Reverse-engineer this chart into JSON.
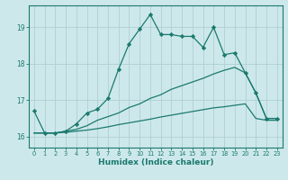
{
  "xlabel": "Humidex (Indice chaleur)",
  "xlim": [
    -0.5,
    23.5
  ],
  "ylim": [
    15.7,
    19.6
  ],
  "yticks": [
    16,
    17,
    18,
    19
  ],
  "xticks": [
    0,
    1,
    2,
    3,
    4,
    5,
    6,
    7,
    8,
    9,
    10,
    11,
    12,
    13,
    14,
    15,
    16,
    17,
    18,
    19,
    20,
    21,
    22,
    23
  ],
  "bg_color": "#cde8eb",
  "line_color": "#1a7a6e",
  "grid_color": "#aed0d4",
  "line1_x": [
    0,
    1,
    2,
    3,
    4,
    5,
    6,
    7,
    8,
    9,
    10,
    11,
    12,
    13,
    14,
    15,
    16,
    17,
    18,
    19,
    20,
    21,
    22,
    23
  ],
  "line1_y": [
    16.7,
    16.1,
    16.1,
    16.15,
    16.35,
    16.65,
    16.75,
    17.05,
    17.85,
    18.55,
    18.95,
    19.35,
    18.8,
    18.8,
    18.75,
    18.75,
    18.45,
    19.0,
    18.25,
    18.3,
    17.75,
    17.2,
    16.5,
    16.5
  ],
  "line2_x": [
    0,
    1,
    2,
    3,
    4,
    5,
    6,
    7,
    8,
    9,
    10,
    11,
    12,
    13,
    14,
    15,
    16,
    17,
    18,
    19,
    20,
    21,
    22,
    23
  ],
  "line2_y": [
    16.1,
    16.1,
    16.1,
    16.15,
    16.2,
    16.3,
    16.45,
    16.55,
    16.65,
    16.8,
    16.9,
    17.05,
    17.15,
    17.3,
    17.4,
    17.5,
    17.6,
    17.72,
    17.82,
    17.9,
    17.75,
    17.2,
    16.5,
    16.5
  ],
  "line3_x": [
    0,
    1,
    2,
    3,
    4,
    5,
    6,
    7,
    8,
    9,
    10,
    11,
    12,
    13,
    14,
    15,
    16,
    17,
    18,
    19,
    20,
    21,
    22,
    23
  ],
  "line3_y": [
    16.1,
    16.1,
    16.1,
    16.12,
    16.15,
    16.18,
    16.22,
    16.27,
    16.33,
    16.38,
    16.43,
    16.48,
    16.54,
    16.59,
    16.64,
    16.69,
    16.74,
    16.79,
    16.82,
    16.86,
    16.9,
    16.5,
    16.45,
    16.45
  ]
}
